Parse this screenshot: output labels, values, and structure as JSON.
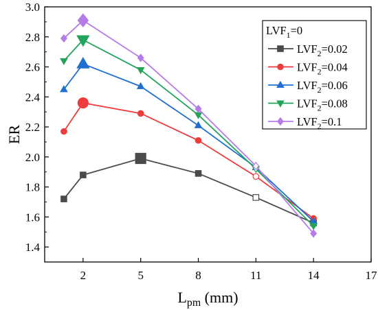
{
  "chart_data": {
    "type": "line",
    "ylabel": "ER",
    "xlabel": {
      "base": "L",
      "sub": "pm",
      "rest": " (mm)"
    },
    "xlim": [
      0,
      17
    ],
    "ylim": [
      1.3,
      3.0
    ],
    "xticks": [
      2,
      5,
      8,
      11,
      14,
      17
    ],
    "yticks": [
      1.4,
      1.6,
      1.8,
      2.0,
      2.2,
      2.4,
      2.6,
      2.8,
      3.0
    ],
    "x": [
      1,
      2,
      5,
      8,
      11,
      14
    ],
    "legend_position": "top-right",
    "legend_title": {
      "base": "LVF",
      "sub": "1",
      "rest": "=0"
    },
    "series": [
      {
        "name": "LVF2=0.02",
        "label_base": "LVF",
        "label_sub": "2",
        "label_rest": "=0.02",
        "color": "#4a4a4a",
        "marker": "square",
        "values": [
          1.72,
          1.88,
          1.99,
          1.89,
          1.73,
          1.56
        ],
        "max_index": 2
      },
      {
        "name": "LVF2=0.04",
        "label_base": "LVF",
        "label_sub": "2",
        "label_rest": "=0.04",
        "color": "#ee3b3b",
        "marker": "circle",
        "values": [
          2.17,
          2.36,
          2.29,
          2.11,
          1.87,
          1.59
        ],
        "max_index": 1
      },
      {
        "name": "LVF2=0.06",
        "label_base": "LVF",
        "label_sub": "2",
        "label_rest": "=0.06",
        "color": "#1f6fd0",
        "marker": "triangle-up",
        "values": [
          2.45,
          2.62,
          2.47,
          2.21,
          1.93,
          1.57
        ],
        "max_index": 1
      },
      {
        "name": "LVF2=0.08",
        "label_base": "LVF",
        "label_sub": "2",
        "label_rest": "=0.08",
        "color": "#22a35a",
        "marker": "triangle-down",
        "values": [
          2.64,
          2.78,
          2.58,
          2.28,
          1.92,
          1.54
        ],
        "max_index": 1
      },
      {
        "name": "LVF2=0.1",
        "label_base": "LVF",
        "label_sub": "2",
        "label_rest": "=0.1",
        "color": "#b57be8",
        "marker": "diamond",
        "values": [
          2.79,
          2.91,
          2.66,
          2.32,
          1.94,
          1.49
        ],
        "max_index": 1
      }
    ],
    "hollow_x": 11
  }
}
